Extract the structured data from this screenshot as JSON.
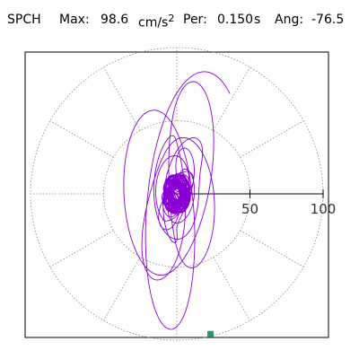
{
  "header": {
    "station": "SPCH",
    "max_label": "Max:",
    "max_value": "98.6",
    "max_unit_base": "cm/s",
    "max_unit_exp": "2",
    "per_label": "Per:",
    "per_value": "0.150",
    "per_unit": "s",
    "ang_label": "Ang:",
    "ang_value": "-76.5"
  },
  "chart_data": {
    "type": "polar-orbit",
    "title": "SPCH  Max: 98.6 cm/s2  Per: 0.150 s  Ang: -76.5",
    "radial_ticks": [
      50,
      100
    ],
    "radial_max": 100,
    "rings": [
      50,
      100
    ],
    "spoke_angles_deg": [
      0,
      30,
      60,
      90,
      120,
      150,
      180,
      210,
      240,
      270,
      300,
      330
    ],
    "peak": {
      "r": 98.6,
      "angle_deg": -76.5
    },
    "trace": {
      "color": "#8a00d4",
      "description_points_polar": [
        [
          0,
          0
        ],
        [
          12,
          40
        ],
        [
          20,
          110
        ],
        [
          25,
          200
        ],
        [
          30,
          290
        ],
        [
          35,
          20
        ],
        [
          40,
          120
        ],
        [
          45,
          210
        ],
        [
          50,
          300
        ],
        [
          55,
          45
        ],
        [
          60,
          150
        ],
        [
          65,
          245
        ],
        [
          70,
          330
        ],
        [
          75,
          80
        ],
        [
          80,
          170
        ],
        [
          85,
          260
        ],
        [
          90,
          350
        ],
        [
          95,
          100
        ],
        [
          98.6,
          -76.5
        ]
      ]
    },
    "marker": {
      "r": 98.6,
      "angle_deg": -76.5,
      "color": "#1a9a7a"
    }
  }
}
